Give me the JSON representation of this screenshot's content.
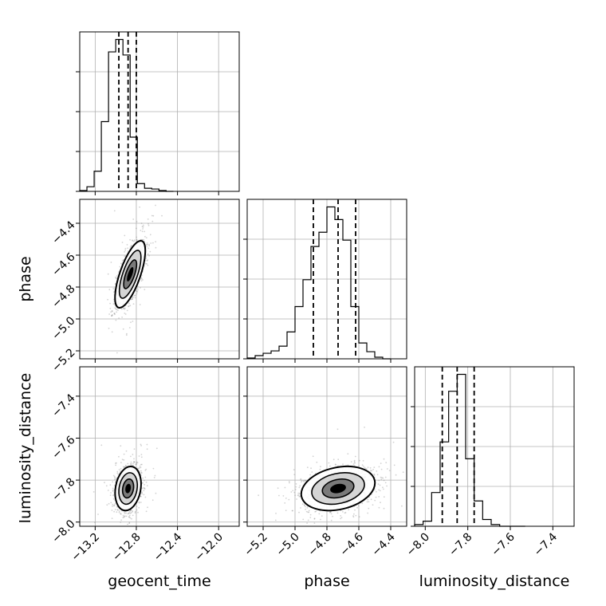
{
  "chart_data": {
    "type": "corner",
    "parameters": [
      "geocent_time",
      "phase",
      "luminosity_distance"
    ],
    "grid": true,
    "histogram_color": "#000000",
    "contour_color": "#000000",
    "scatter_color": "#808080",
    "panels": {
      "hist_geocent_time": {
        "xlim": [
          -13.35,
          -11.8
        ],
        "x_ticks": [
          -13.2,
          -12.8,
          -12.4,
          -12.0
        ],
        "bin_edges": [
          -13.35,
          -13.28,
          -13.21,
          -13.14,
          -13.07,
          -13.0,
          -12.93,
          -12.86,
          -12.79,
          -12.72,
          -12.65,
          -12.58,
          -12.51,
          -12.44
        ],
        "counts": [
          0.005,
          0.03,
          0.13,
          0.45,
          0.9,
          0.98,
          0.88,
          0.35,
          0.05,
          0.02,
          0.015,
          0.005,
          0.0
        ],
        "quantiles": [
          -12.97,
          -12.88,
          -12.8
        ]
      },
      "hist_phase": {
        "xlim": [
          -5.3,
          -4.3
        ],
        "x_ticks": [
          -5.2,
          -5.0,
          -4.8,
          -4.6,
          -4.4
        ],
        "bin_edges": [
          -5.3,
          -5.25,
          -5.2,
          -5.15,
          -5.1,
          -5.05,
          -5.0,
          -4.95,
          -4.9,
          -4.85,
          -4.8,
          -4.75,
          -4.7,
          -4.65,
          -4.6,
          -4.55,
          -4.5,
          -4.45,
          -4.4
        ],
        "counts": [
          0.005,
          0.02,
          0.035,
          0.05,
          0.08,
          0.17,
          0.33,
          0.5,
          0.71,
          0.8,
          0.96,
          0.88,
          0.75,
          0.33,
          0.1,
          0.045,
          0.01,
          0.0
        ],
        "quantiles": [
          -4.885,
          -4.73,
          -4.62
        ]
      },
      "hist_luminosity_distance": {
        "xlim": [
          -8.05,
          -7.3
        ],
        "x_ticks": [
          -8.0,
          -7.8,
          -7.6,
          -7.4
        ],
        "bin_edges": [
          -8.05,
          -8.01,
          -7.97,
          -7.93,
          -7.89,
          -7.85,
          -7.81,
          -7.77,
          -7.73,
          -7.69,
          -7.65,
          -7.61,
          -7.57,
          -7.53
        ],
        "counts": [
          0.01,
          0.03,
          0.2,
          0.5,
          0.8,
          0.9,
          0.4,
          0.15,
          0.04,
          0.01,
          0.0,
          0.0,
          0.0
        ],
        "quantiles": [
          -7.92,
          -7.85,
          -7.77
        ]
      },
      "phase_vs_geocent_time": {
        "xlim": [
          -13.35,
          -11.8
        ],
        "ylim": [
          -5.25,
          -4.25
        ],
        "y_ticks": [
          -5.2,
          -5.0,
          -4.8,
          -4.6,
          -4.4
        ],
        "center": [
          -12.86,
          -4.72
        ],
        "spread": [
          0.07,
          0.1
        ],
        "correlation": 0.7
      },
      "luminosity_distance_vs_geocent_time": {
        "xlim": [
          -13.35,
          -11.8
        ],
        "ylim": [
          -8.02,
          -7.26
        ],
        "y_ticks": [
          -8.0,
          -7.8,
          -7.6,
          -7.4
        ],
        "center": [
          -12.88,
          -7.84
        ],
        "spread": [
          0.06,
          0.05
        ],
        "correlation": 0.2
      },
      "luminosity_distance_vs_phase": {
        "xlim": [
          -5.3,
          -4.3
        ],
        "ylim": [
          -8.02,
          -7.26
        ],
        "center": [
          -4.73,
          -7.84
        ],
        "spread": [
          0.11,
          0.05
        ],
        "correlation": 0.25
      }
    }
  }
}
